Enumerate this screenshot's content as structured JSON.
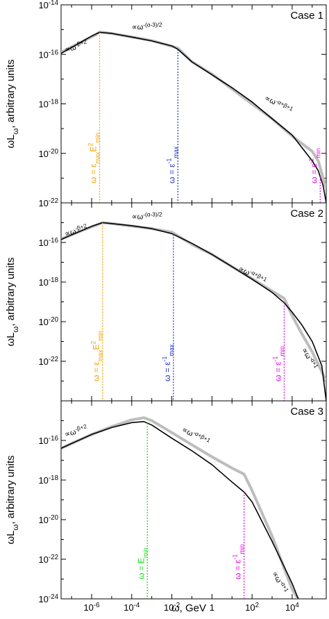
{
  "figure": {
    "xlabel_main": "ω, GeV"
  },
  "chart_data": [
    {
      "type": "line",
      "title": "",
      "case_label": "Case 1",
      "xlabel": "",
      "ylabel_main": "ωL",
      "ylabel_sub": "ω",
      "ylabel_rest": ", arbitrary units",
      "x_scale": "log",
      "y_scale": "log",
      "xlim": [
        3e-08,
        500000.0
      ],
      "ylim": [
        1e-22,
        1e-14
      ],
      "x_ticks": [],
      "y_ticks": [
        {
          "value": 1e-22,
          "base": "10",
          "exp": "-22"
        },
        {
          "value": 1e-20,
          "base": "10",
          "exp": "-20"
        },
        {
          "value": 1e-18,
          "base": "10",
          "exp": "-18"
        },
        {
          "value": 1e-16,
          "base": "10",
          "exp": "-16"
        },
        {
          "value": 1e-14,
          "base": "10",
          "exp": "-14"
        }
      ],
      "series": [
        {
          "color": "#bdbdbd",
          "x": [
            3e-08,
            1e-07,
            1.5e-06,
            2.5e-06,
            1e-05,
            0.001,
            0.02,
            0.1,
            1,
            10,
            100.0,
            1000.0,
            10000.0,
            100000.0,
            200000.0,
            350000.0,
            500000.0
          ],
          "y": [
            1.2e-16,
            2e-16,
            6e-16,
            8e-16,
            7e-16,
            3.6e-16,
            1.8e-16,
            5e-17,
            1.6e-17,
            4e-18,
            1e-18,
            2.5e-19,
            5e-20,
            1.2e-20,
            5e-21,
            1e-21,
            4e-22
          ]
        },
        {
          "color": "#000000",
          "x": [
            3e-08,
            1e-07,
            1e-06,
            2.5e-06,
            1e-05,
            0.0001,
            0.001,
            0.01,
            0.02,
            0.1,
            1,
            10,
            100.0,
            1000.0,
            10000.0,
            100000.0,
            200000.0,
            350000.0,
            500000.0
          ],
          "y": [
            1.1e-16,
            1.9e-16,
            5.5e-16,
            7.8e-16,
            7e-16,
            5e-16,
            3.5e-16,
            2.2e-16,
            1.6e-16,
            5e-17,
            1.5e-17,
            4.5e-18,
            1.2e-18,
            2.5e-19,
            5.5e-20,
            5e-21,
            2e-21,
            5e-22,
            1e-22
          ]
        }
      ],
      "vlines": [
        {
          "x": 2.5e-06,
          "color": "#f0a000",
          "label": "ω = ε",
          "sub": "max",
          "post": "E",
          "sup2": "2",
          "sub2": "min"
        },
        {
          "x": 0.02,
          "color": "#2030c0",
          "label": "ω = ε",
          "sup": "-1",
          "sub": "max"
        },
        {
          "x": 250000.0,
          "color": "#e000e0",
          "label": "ω = ε",
          "sup": "-1",
          "sub": "min"
        }
      ],
      "annotations": [
        {
          "text": "∝ω",
          "sup": "-β+2",
          "x": 5e-08,
          "y": 1.2e-16
        },
        {
          "text": "∝ω",
          "sup": "-(α-3)/2",
          "x": 0.0001,
          "y": 1e-15
        },
        {
          "text": "∝ω",
          "sup": "-α+β+1",
          "x": 400.0,
          "y": 1.5e-18
        }
      ]
    },
    {
      "type": "line",
      "title": "",
      "case_label": "Case 2",
      "xlabel": "",
      "ylabel_main": "ωL",
      "ylabel_sub": "ω",
      "ylabel_rest": ", arbitrary units",
      "x_scale": "log",
      "y_scale": "log",
      "xlim": [
        3e-08,
        500000.0
      ],
      "ylim": [
        1e-24,
        1e-14
      ],
      "x_ticks": [],
      "y_ticks": [
        {
          "value": 1e-22,
          "base": "10",
          "exp": "-22"
        },
        {
          "value": 1e-20,
          "base": "10",
          "exp": "-20"
        },
        {
          "value": 1e-18,
          "base": "10",
          "exp": "-18"
        },
        {
          "value": 1e-16,
          "base": "10",
          "exp": "-16"
        }
      ],
      "series": [
        {
          "color": "#bdbdbd",
          "x": [
            3e-08,
            1e-07,
            2e-06,
            3.5e-06,
            1e-05,
            0.001,
            0.01,
            0.012,
            0.1,
            1,
            10,
            100.0,
            1000.0,
            4000.0,
            10000.0,
            30000.0,
            100000.0,
            300000.0,
            500000.0
          ],
          "y": [
            1.5e-16,
            2.5e-16,
            8e-16,
            1e-15,
            9e-16,
            5e-16,
            3.3e-16,
            3e-16,
            8e-17,
            2.5e-17,
            6e-18,
            1.5e-18,
            3.5e-19,
            1.5e-19,
            2e-20,
            2.5e-21,
            3e-22,
            3e-23,
            1e-23
          ]
        },
        {
          "color": "#000000",
          "x": [
            3e-08,
            1e-07,
            1e-06,
            3.5e-06,
            1e-05,
            0.0001,
            0.001,
            0.01,
            0.1,
            1,
            10,
            100.0,
            1000.0,
            4000.0,
            10000.0,
            30000.0,
            100000.0,
            300000.0,
            500000.0
          ],
          "y": [
            1.4e-16,
            2.4e-16,
            6.5e-16,
            1e-15,
            9e-16,
            7e-16,
            5e-16,
            2.8e-16,
            9e-17,
            2.5e-17,
            6e-18,
            1.4e-18,
            3e-19,
            9e-20,
            3e-20,
            7e-21,
            1e-21,
            6e-23,
            1e-24
          ]
        }
      ],
      "vlines": [
        {
          "x": 3.5e-06,
          "color": "#f0a000",
          "label": "ω = ε",
          "sub": "max",
          "post": "E",
          "sup2": "2",
          "sub2": "min"
        },
        {
          "x": 0.012,
          "color": "#2030c0",
          "label": "ω = ε",
          "sup": "-1",
          "sub": "max"
        },
        {
          "x": 4000.0,
          "color": "#e000e0",
          "label": "ω = ε",
          "sup": "-1",
          "sub": "min"
        }
      ],
      "annotations": [
        {
          "text": "∝ω",
          "sup": "-β+2",
          "x": 5e-08,
          "y": 2e-16
        },
        {
          "text": "∝ω",
          "sup": "-(α-3)/2",
          "x": 0.0001,
          "y": 1.5e-15
        },
        {
          "text": "∝ω",
          "sup": "-α+β+1",
          "x": 20,
          "y": 4e-18
        },
        {
          "text": "∝ω",
          "sup": "-α+1",
          "x": 30000.0,
          "y": 4e-22
        }
      ]
    },
    {
      "type": "line",
      "title": "",
      "case_label": "Case 3",
      "xlabel": "",
      "ylabel_main": "ωL",
      "ylabel_sub": "ω",
      "ylabel_rest": ", arbitrary units",
      "x_scale": "log",
      "y_scale": "log",
      "xlim": [
        3e-08,
        500000.0
      ],
      "ylim": [
        1e-24,
        1e-14
      ],
      "x_ticks": [
        {
          "value": 1e-06,
          "base": "10",
          "exp": "-6"
        },
        {
          "value": 0.0001,
          "base": "10",
          "exp": "-4"
        },
        {
          "value": 0.01,
          "base": "10",
          "exp": "-2"
        },
        {
          "value": 1,
          "base": "1",
          "exp": ""
        },
        {
          "value": 100.0,
          "base": "10",
          "exp": "2"
        },
        {
          "value": 10000.0,
          "base": "10",
          "exp": "4"
        }
      ],
      "y_ticks": [
        {
          "value": 1e-24,
          "base": "10",
          "exp": "-24"
        },
        {
          "value": 1e-22,
          "base": "10",
          "exp": "-22"
        },
        {
          "value": 1e-20,
          "base": "10",
          "exp": "-20"
        },
        {
          "value": 1e-18,
          "base": "10",
          "exp": "-18"
        },
        {
          "value": 1e-16,
          "base": "10",
          "exp": "-16"
        }
      ],
      "series": [
        {
          "color": "#bdbdbd",
          "x": [
            3e-08,
            1e-07,
            1e-06,
            1e-05,
            0.0001,
            0.0004,
            0.001,
            0.01,
            0.1,
            1,
            10,
            40,
            100.0,
            1000.0,
            10000.0,
            20000.0
          ],
          "y": [
            4e-17,
            7e-17,
            2e-16,
            5e-16,
            1.1e-15,
            1.4e-15,
            1e-15,
            2.5e-16,
            6e-17,
            1.5e-17,
            4e-18,
            2e-18,
            3e-19,
            1.5e-21,
            3e-24,
            1e-24
          ]
        },
        {
          "color": "#000000",
          "x": [
            3e-08,
            1e-07,
            1e-06,
            1e-05,
            0.0001,
            0.0004,
            0.001,
            0.01,
            0.1,
            1,
            10,
            40,
            100.0,
            1000.0,
            10000.0,
            20000.0
          ],
          "y": [
            4e-17,
            7e-17,
            2e-16,
            4.5e-16,
            8e-16,
            9e-16,
            6e-16,
            1.3e-16,
            3e-17,
            6e-18,
            8e-19,
            2.5e-19,
            8e-20,
            8e-22,
            6e-24,
            1e-24
          ]
        }
      ],
      "vlines": [
        {
          "x": 0.0006,
          "color": "#10dd10",
          "label": "ω = E",
          "sub": "min"
        },
        {
          "x": 40,
          "color": "#e000e0",
          "label": "ω = ε",
          "sup": "-1",
          "sub": "min"
        }
      ],
      "annotations": [
        {
          "text": "∝ω",
          "sup": "-β+2",
          "x": 5e-08,
          "y": 1.5e-16
        },
        {
          "text": "∝ω",
          "sup": "-α+β+1",
          "x": 0.03,
          "y": 3e-16
        },
        {
          "text": "∝ω",
          "sup": "-α+1",
          "x": 1000.0,
          "y": 2e-23
        }
      ]
    }
  ]
}
